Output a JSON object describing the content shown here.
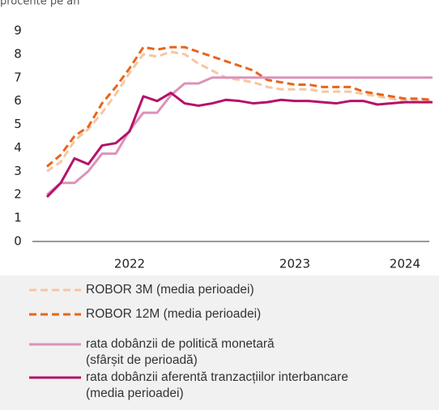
{
  "chart_data": {
    "type": "line",
    "y_label": "procente pe an",
    "categories": [
      null,
      null,
      null,
      null,
      null,
      null,
      "2022",
      null,
      null,
      null,
      null,
      null,
      null,
      null,
      null,
      null,
      null,
      null,
      "2023",
      null,
      null,
      null,
      null,
      null,
      null,
      null,
      "2024",
      null,
      null
    ],
    "ylim": [
      0,
      9
    ],
    "yticks": [
      0,
      1,
      2,
      3,
      4,
      5,
      6,
      7,
      8,
      9
    ],
    "series": [
      {
        "name": "ROBOR 3M (media perioadei)",
        "color": "#f6c6a2",
        "dashed": true,
        "values": [
          3.0,
          3.4,
          4.3,
          4.8,
          5.5,
          6.3,
          7.2,
          8.0,
          7.9,
          8.1,
          8.0,
          7.6,
          7.3,
          7.0,
          6.9,
          6.8,
          6.6,
          6.5,
          6.5,
          6.5,
          6.4,
          6.4,
          6.4,
          6.3,
          6.2,
          6.1,
          6.0,
          6.0,
          6.0
        ]
      },
      {
        "name": "ROBOR 12M (media perioadei)",
        "color": "#e8651c",
        "dashed": true,
        "values": [
          3.2,
          3.7,
          4.5,
          4.9,
          5.9,
          6.6,
          7.4,
          8.3,
          8.2,
          8.3,
          8.3,
          8.1,
          7.9,
          7.7,
          7.5,
          7.3,
          6.9,
          6.8,
          6.7,
          6.7,
          6.6,
          6.6,
          6.6,
          6.4,
          6.3,
          6.2,
          6.1,
          6.1,
          6.05
        ]
      },
      {
        "name": "rata dobânzii de politică monetară\n(sfârșit de perioadă)",
        "color": "#dc93b8",
        "dashed": false,
        "values": [
          2.0,
          2.5,
          2.5,
          3.0,
          3.75,
          3.75,
          4.75,
          5.5,
          5.5,
          6.25,
          6.75,
          6.75,
          7.0,
          7.0,
          7.0,
          7.0,
          7.0,
          7.0,
          7.0,
          7.0,
          7.0,
          7.0,
          7.0,
          7.0,
          7.0,
          7.0,
          7.0,
          7.0,
          7.0
        ]
      },
      {
        "name": "rata dobânzii aferentă tranzacțiilor interbancare\n(media perioadei)",
        "color": "#b5126a",
        "dashed": false,
        "values": [
          1.9,
          2.5,
          3.55,
          3.3,
          4.1,
          4.2,
          4.7,
          6.2,
          6.0,
          6.35,
          5.9,
          5.8,
          5.9,
          6.05,
          6.0,
          5.9,
          5.95,
          6.05,
          6.0,
          6.0,
          5.95,
          5.9,
          6.0,
          6.0,
          5.85,
          5.9,
          5.95,
          5.95,
          5.95
        ]
      }
    ]
  }
}
